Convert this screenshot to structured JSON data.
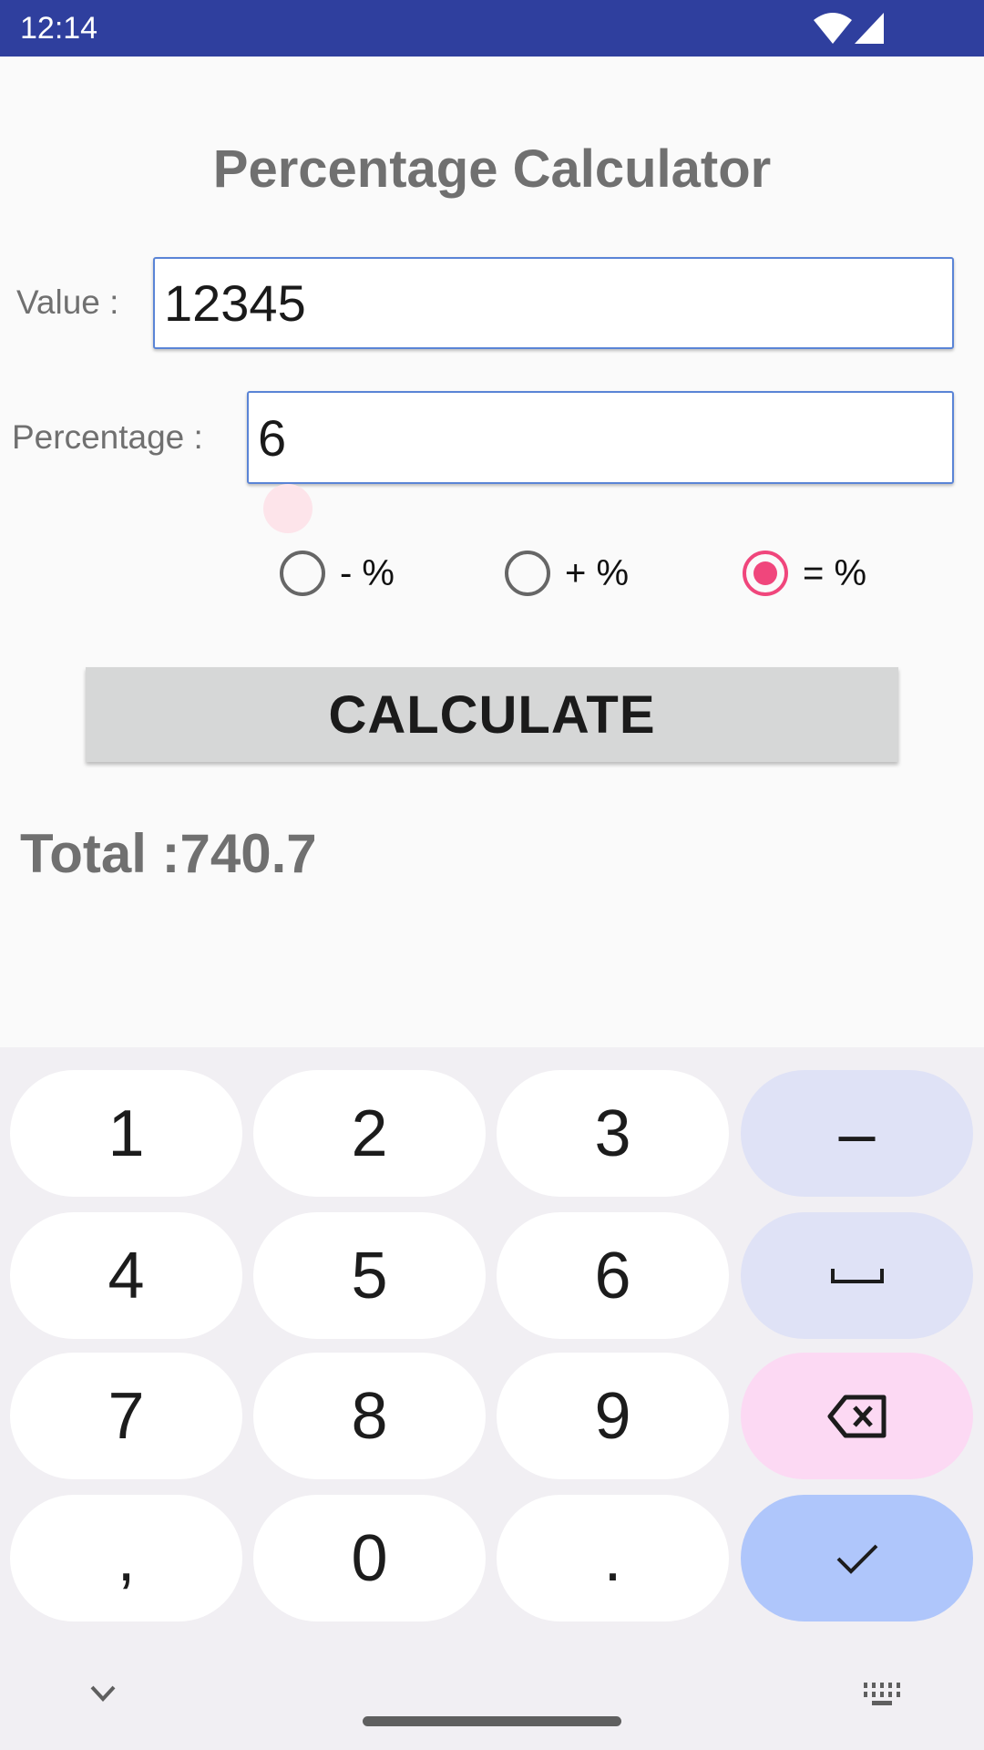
{
  "status_bar": {
    "time": "12:14",
    "icons": [
      "wifi-icon",
      "signal-icon"
    ],
    "color": "#2f3f9e"
  },
  "app": {
    "title": "Percentage Calculator",
    "value_label": "Value :",
    "value": "12345",
    "percentage_label": "Percentage :",
    "percentage": "6",
    "options": [
      {
        "label": "- %",
        "selected": false
      },
      {
        "label": "+ %",
        "selected": false
      },
      {
        "label": "= %",
        "selected": true
      }
    ],
    "calculate_label": "CALCULATE",
    "total": "Total :740.7",
    "accent": "#f0467c"
  },
  "keyboard": {
    "keys": [
      "1",
      "2",
      "3",
      "–",
      "4",
      "5",
      "6",
      "space",
      "7",
      "8",
      "9",
      "backspace",
      ",",
      "0",
      ".",
      "done"
    ],
    "colors": {
      "function": "#dfe2f6",
      "backspace": "#fcd9f3",
      "done": "#afc6fb"
    }
  }
}
